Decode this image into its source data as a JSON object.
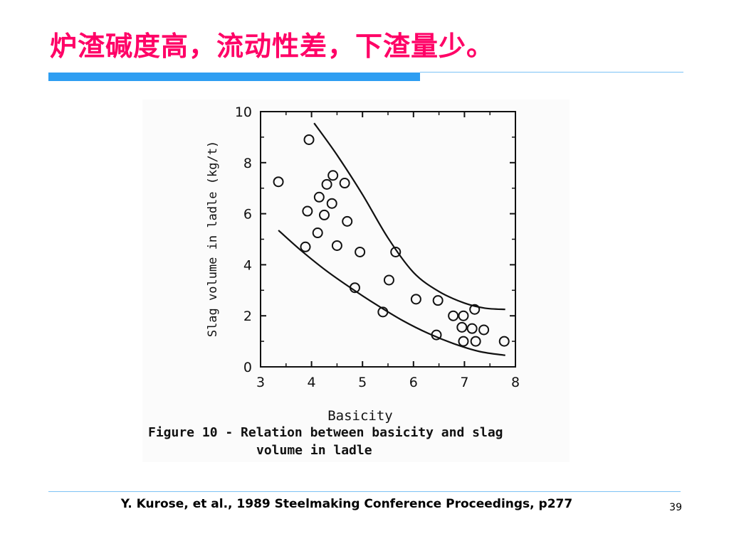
{
  "slide": {
    "title": "炉渣碱度高，流动性差，下渣量少。",
    "citation": "Y. Kurose, et al., 1989 Steelmaking Conference Proceedings, p277",
    "page_number": "39"
  },
  "colors": {
    "title": "#ff0066",
    "accent_bar": "#2e9ef2",
    "rule_line": "#7cc2f5",
    "ink": "#111111"
  },
  "chart_data": {
    "type": "scatter",
    "xlabel": "Basicity",
    "ylabel": "Slag volume in ladle (kg/t)",
    "xlim": [
      3,
      8
    ],
    "ylim": [
      0,
      10
    ],
    "x_ticks": [
      3,
      4,
      5,
      6,
      7,
      8
    ],
    "y_ticks": [
      0,
      2,
      4,
      6,
      8,
      10
    ],
    "grid": false,
    "caption_line1": "Figure 10 - Relation between basicity and slag",
    "caption_line2": "volume in ladle",
    "points": [
      {
        "x": 3.35,
        "y": 7.25
      },
      {
        "x": 3.95,
        "y": 8.9
      },
      {
        "x": 3.92,
        "y": 6.1
      },
      {
        "x": 4.15,
        "y": 6.65
      },
      {
        "x": 4.3,
        "y": 7.15
      },
      {
        "x": 4.42,
        "y": 7.5
      },
      {
        "x": 4.65,
        "y": 7.2
      },
      {
        "x": 4.4,
        "y": 6.4
      },
      {
        "x": 4.25,
        "y": 5.95
      },
      {
        "x": 4.7,
        "y": 5.7
      },
      {
        "x": 4.12,
        "y": 5.25
      },
      {
        "x": 3.88,
        "y": 4.7
      },
      {
        "x": 4.5,
        "y": 4.75
      },
      {
        "x": 4.95,
        "y": 4.5
      },
      {
        "x": 5.65,
        "y": 4.5
      },
      {
        "x": 4.85,
        "y": 3.1
      },
      {
        "x": 5.52,
        "y": 3.4
      },
      {
        "x": 5.4,
        "y": 2.15
      },
      {
        "x": 6.05,
        "y": 2.65
      },
      {
        "x": 6.48,
        "y": 2.6
      },
      {
        "x": 6.78,
        "y": 2.0
      },
      {
        "x": 6.98,
        "y": 2.0
      },
      {
        "x": 7.2,
        "y": 2.25
      },
      {
        "x": 6.95,
        "y": 1.55
      },
      {
        "x": 7.15,
        "y": 1.5
      },
      {
        "x": 7.38,
        "y": 1.45
      },
      {
        "x": 6.45,
        "y": 1.25
      },
      {
        "x": 6.98,
        "y": 1.0
      },
      {
        "x": 7.22,
        "y": 1.0
      },
      {
        "x": 7.78,
        "y": 1.0
      }
    ],
    "bounds": [
      {
        "x": [
          4.05,
          4.5,
          5.0,
          5.5,
          6.0,
          6.5,
          7.0,
          7.4,
          7.8
        ],
        "y": [
          9.55,
          8.3,
          6.75,
          5.05,
          3.7,
          2.95,
          2.5,
          2.3,
          2.25
        ]
      },
      {
        "x": [
          3.35,
          3.8,
          4.3,
          4.8,
          5.3,
          5.8,
          6.3,
          6.8,
          7.3,
          7.8
        ],
        "y": [
          5.35,
          4.55,
          3.75,
          3.05,
          2.4,
          1.8,
          1.3,
          0.9,
          0.6,
          0.45
        ]
      }
    ]
  }
}
